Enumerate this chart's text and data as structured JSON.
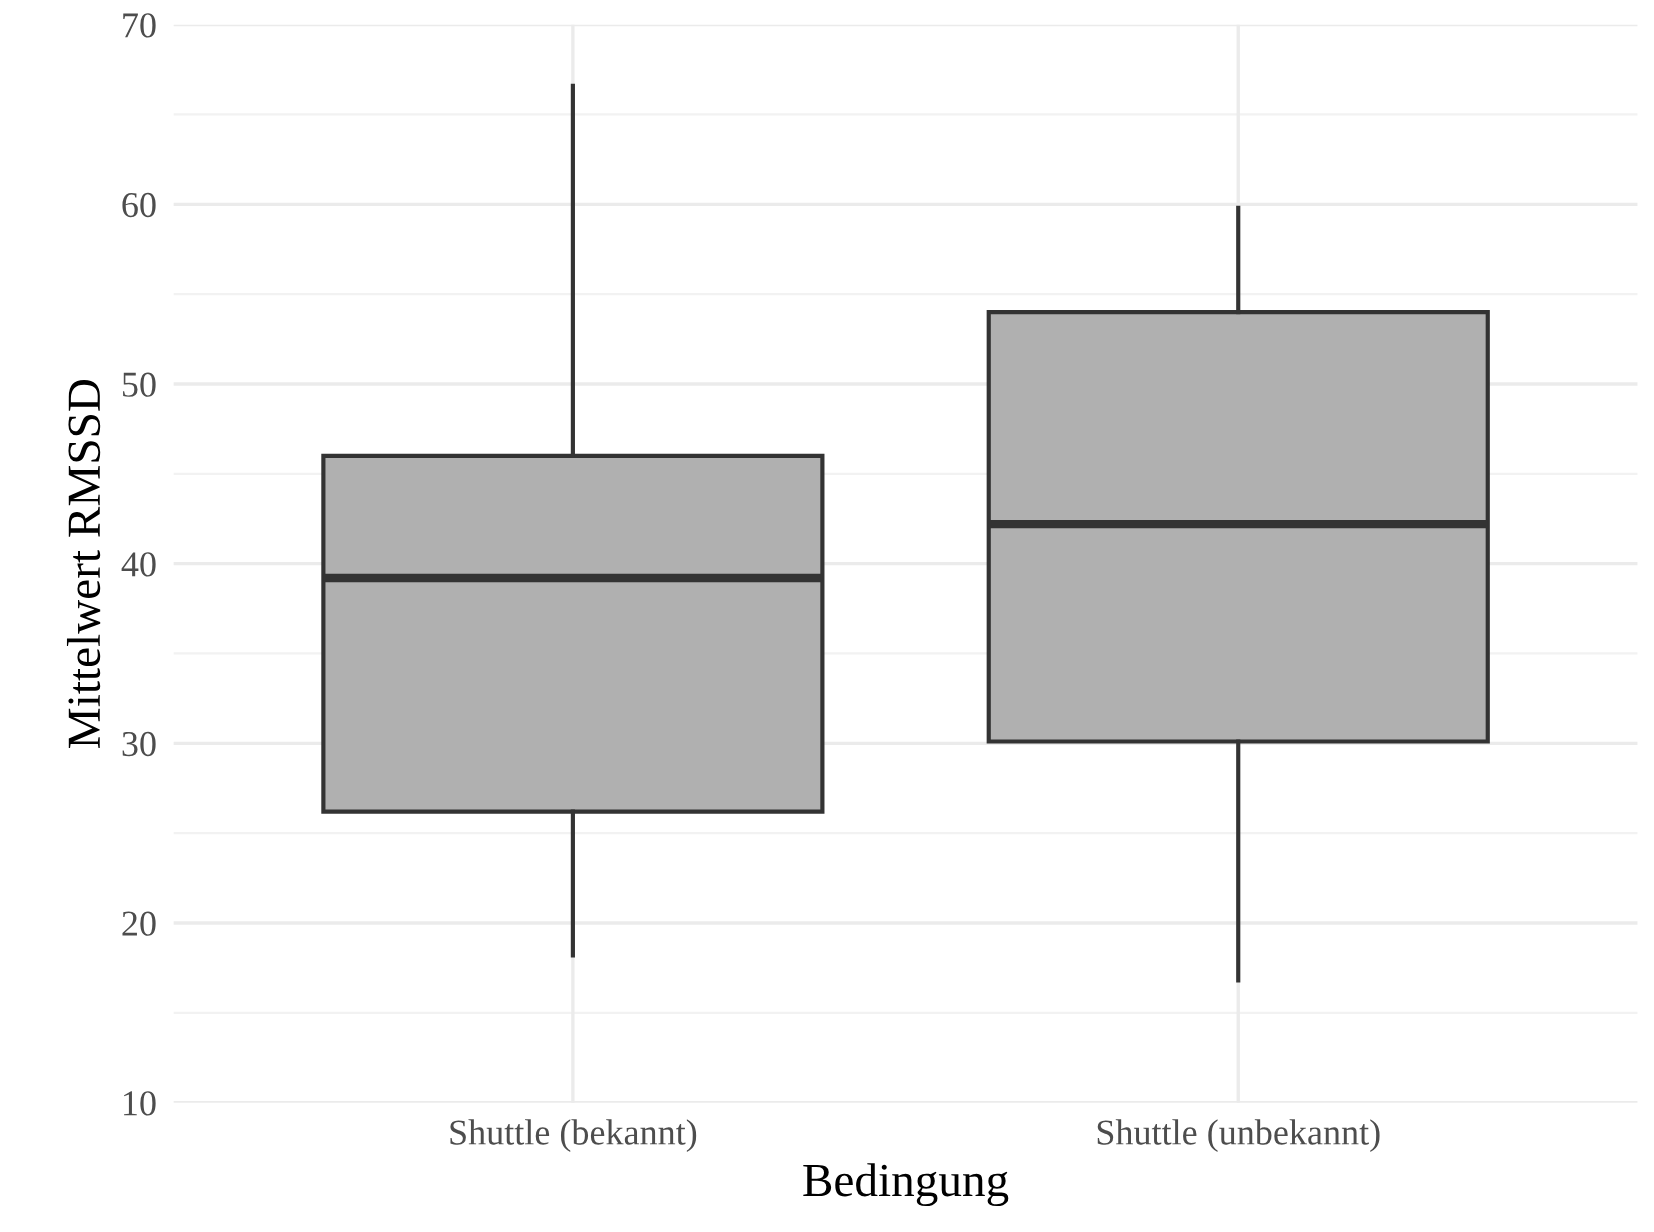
{
  "chart_data": {
    "type": "box",
    "xlabel": "Bedingung",
    "ylabel": "Mittelwert RMSSD",
    "categories": [
      "Shuttle (bekannt)",
      "Shuttle (unbekannt)"
    ],
    "boxes": [
      {
        "low": 18.2,
        "q1": 26.2,
        "median": 39.2,
        "q3": 46.0,
        "high": 66.6
      },
      {
        "low": 16.8,
        "q1": 30.1,
        "median": 42.2,
        "q3": 54.0,
        "high": 59.8
      }
    ],
    "color": "#b0b0b0",
    "ylim": [
      10,
      70
    ],
    "yticks": [
      10,
      20,
      30,
      40,
      50,
      60,
      70
    ],
    "grid": true
  }
}
